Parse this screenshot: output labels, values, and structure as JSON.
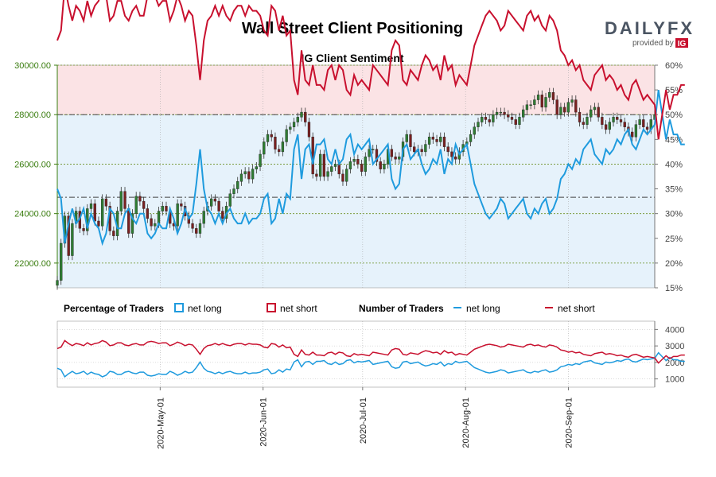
{
  "title": "Wall Street Client Positioning",
  "logo": {
    "brand": "DAILYFX",
    "provided_by": "provided by",
    "ig": "IG"
  },
  "colors": {
    "short_zone": "#fbe3e5",
    "long_zone": "#e6f2fb",
    "net_long": "#1f9bde",
    "net_short": "#c8102e",
    "candle_up": "#2e7d32",
    "candle_down": "#7a2020",
    "left_axis": "#3a7d0f"
  },
  "chart_data": {
    "type": "line",
    "title": "IG Client Sentiment",
    "left_axis": {
      "ticks": [
        22000,
        24000,
        26000,
        28000,
        30000
      ],
      "labels": [
        "22000.00",
        "24000.00",
        "26000.00",
        "28000.00",
        "30000.00"
      ],
      "ylim": [
        21000,
        30000
      ]
    },
    "right_axis": {
      "ticks": [
        15,
        20,
        25,
        30,
        35,
        40,
        45,
        50,
        55,
        60
      ],
      "labels": [
        "15%",
        "20%",
        "25%",
        "30%",
        "35%",
        "40%",
        "45%",
        "50%",
        "55%",
        "60%"
      ],
      "ylim": [
        15,
        60
      ]
    },
    "lower_axis": {
      "ticks": [
        1000,
        2000,
        3000,
        4000
      ],
      "labels": [
        "1000",
        "2000",
        "3000",
        "4000"
      ],
      "ylim": [
        500,
        4500
      ]
    },
    "x_labels": [
      "2020-May-01",
      "2020-Jun-01",
      "2020-Jul-01",
      "2020-Aug-01",
      "2020-Sep-01"
    ],
    "x_label_days": [
      31,
      62,
      92,
      123,
      154
    ],
    "day_range": [
      0,
      180
    ],
    "reference_lines": [
      {
        "percent": 50
      },
      {
        "percent": 33.3
      }
    ],
    "price_close": [
      21300,
      22800,
      23900,
      22300,
      23600,
      24100,
      23400,
      23300,
      24200,
      24400,
      23700,
      23500,
      24600,
      24300,
      23300,
      23100,
      24100,
      24900,
      24200,
      23200,
      24000,
      24700,
      24500,
      24200,
      23800,
      23500,
      23600,
      24100,
      24300,
      24100,
      23600,
      23500,
      24400,
      24300,
      23900,
      23600,
      23400,
      23200,
      23600,
      24100,
      24300,
      24600,
      24500,
      24100,
      23800,
      24300,
      24800,
      25000,
      25300,
      25600,
      25700,
      25400,
      25800,
      25900,
      26400,
      26900,
      27200,
      27100,
      26600,
      26500,
      26900,
      27400,
      27500,
      27700,
      27900,
      28100,
      27700,
      27100,
      25600,
      25500,
      26400,
      25500,
      25700,
      25900,
      26000,
      25600,
      25300,
      25800,
      26100,
      26200,
      26000,
      25700,
      26300,
      26600,
      26600,
      26100,
      25800,
      26000,
      26600,
      26300,
      26200,
      26300,
      26900,
      27200,
      26700,
      26500,
      26600,
      26500,
      26800,
      27100,
      27000,
      26900,
      27100,
      26700,
      26500,
      26300,
      26200,
      26500,
      26800,
      26900,
      27200,
      27500,
      27700,
      27900,
      27800,
      27700,
      28000,
      28100,
      28100,
      28000,
      27900,
      27800,
      27600,
      27900,
      28200,
      28400,
      28400,
      28600,
      28800,
      28300,
      28700,
      28900,
      28600,
      28000,
      28300,
      28100,
      28500,
      28600,
      28100,
      27700,
      27600,
      27900,
      28200,
      28300,
      27900,
      27600,
      27400,
      27700,
      27900,
      27800,
      27700,
      27500,
      27300,
      27100,
      27600,
      27800,
      27500,
      27400,
      27800,
      28000
    ],
    "net_long_pct": [
      35,
      33,
      24,
      28,
      31,
      28,
      29,
      31,
      27,
      30,
      28,
      27,
      24,
      26,
      31,
      30,
      27,
      27,
      30,
      31,
      29,
      28,
      30,
      30,
      26,
      25,
      26,
      28,
      27,
      27,
      31,
      29,
      26,
      28,
      31,
      29,
      30,
      36,
      43,
      35,
      31,
      30,
      28,
      30,
      28,
      30,
      31,
      29,
      28,
      28,
      30,
      28,
      29,
      29,
      30,
      33,
      34,
      28,
      29,
      33,
      30,
      34,
      33,
      43,
      46,
      37,
      43,
      44,
      40,
      44,
      44,
      45,
      41,
      40,
      43,
      40,
      41,
      45,
      46,
      42,
      44,
      43,
      44,
      45,
      40,
      41,
      42,
      43,
      44,
      37,
      35,
      36,
      43,
      44,
      41,
      42,
      43,
      40,
      38,
      39,
      41,
      40,
      43,
      38,
      41,
      40,
      44,
      42,
      43,
      44,
      40,
      36,
      34,
      32,
      30,
      29,
      30,
      31,
      33,
      32,
      29,
      30,
      31,
      32,
      33,
      30,
      29,
      31,
      30,
      32,
      33,
      30,
      31,
      33,
      37,
      38,
      40,
      39,
      41,
      40,
      43,
      44,
      45,
      42,
      41,
      40,
      43,
      42,
      43,
      45,
      44,
      46,
      47,
      44,
      43,
      45,
      47,
      46,
      47,
      48,
      55,
      50,
      45,
      49,
      46,
      46,
      44,
      44
    ],
    "net_short_pct": [
      65,
      67,
      76,
      72,
      69,
      72,
      71,
      69,
      73,
      70,
      72,
      73,
      76,
      74,
      69,
      70,
      73,
      73,
      70,
      69,
      71,
      72,
      70,
      70,
      74,
      75,
      74,
      72,
      73,
      73,
      69,
      71,
      74,
      72,
      69,
      71,
      70,
      64,
      57,
      65,
      69,
      70,
      72,
      70,
      72,
      70,
      69,
      71,
      72,
      72,
      70,
      72,
      71,
      71,
      70,
      67,
      66,
      72,
      71,
      67,
      70,
      66,
      67,
      57,
      54,
      63,
      57,
      56,
      60,
      56,
      56,
      55,
      59,
      60,
      57,
      60,
      59,
      55,
      54,
      58,
      56,
      57,
      56,
      55,
      60,
      59,
      58,
      57,
      56,
      63,
      65,
      64,
      57,
      56,
      59,
      58,
      57,
      60,
      62,
      61,
      59,
      60,
      57,
      62,
      59,
      60,
      56,
      58,
      57,
      56,
      60,
      64,
      66,
      68,
      70,
      71,
      70,
      69,
      67,
      68,
      71,
      70,
      69,
      68,
      67,
      70,
      71,
      69,
      70,
      68,
      67,
      70,
      69,
      67,
      63,
      62,
      60,
      61,
      59,
      60,
      57,
      56,
      55,
      58,
      59,
      60,
      57,
      58,
      57,
      55,
      56,
      54,
      53,
      56,
      57,
      55,
      53,
      54,
      53,
      52,
      45,
      50,
      55,
      51,
      54,
      54,
      56,
      56
    ],
    "legend": {
      "percentage_title": "Percentage of Traders",
      "number_title": "Number of Traders",
      "net_long": "net long",
      "net_short": "net short"
    }
  }
}
